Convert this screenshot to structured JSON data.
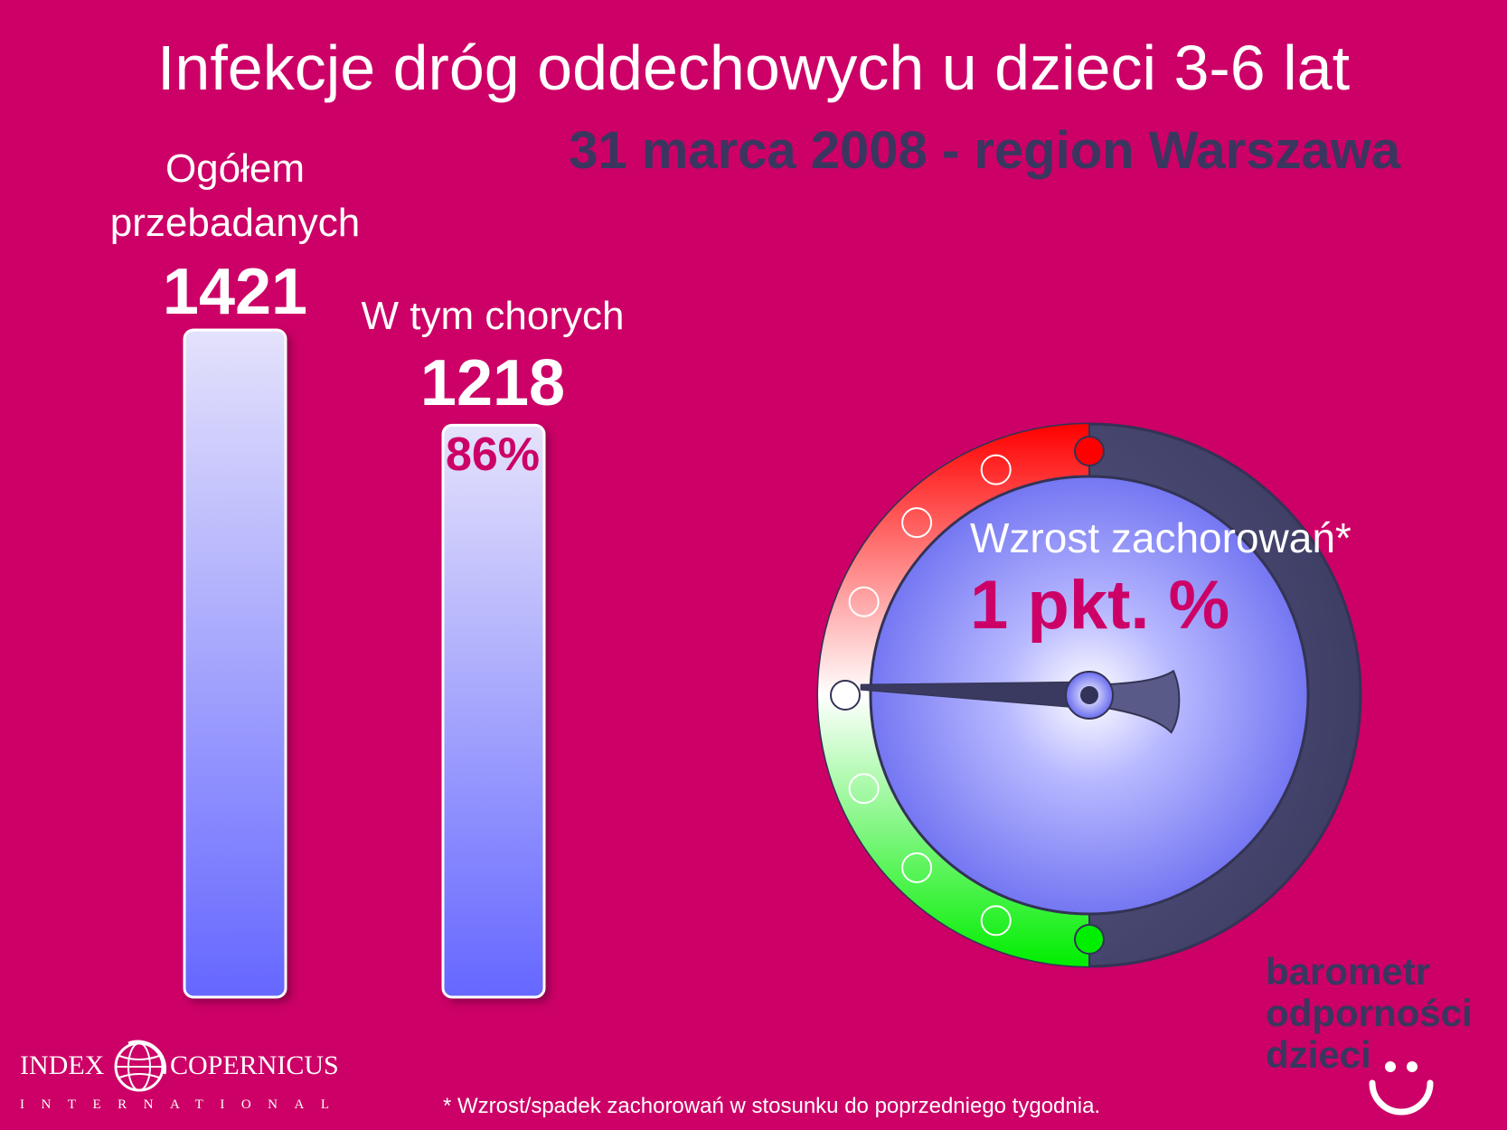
{
  "header": {
    "title": "Infekcje dróg oddechowych u dzieci 3-6 lat",
    "subtitle": "31 marca 2008 - region Warszawa"
  },
  "chart_data": [
    {
      "type": "bar",
      "categories": [
        "Ogółem przebadanych",
        "W tym chorych"
      ],
      "values": [
        1421,
        1218
      ],
      "category_labels": {
        "total_line1": "Ogółem",
        "total_line2": "przebadanych",
        "sick": "W tym chorych"
      },
      "value_labels": [
        "1421",
        "1218"
      ],
      "sick_share_label": "86%",
      "ylim": [
        0,
        1421
      ],
      "bar_colors": {
        "top": "#e4e2fb",
        "bottom": "#6567ff",
        "border": "#ffffff"
      }
    },
    {
      "type": "gauge",
      "label": "Wzrost zachorowań*",
      "value_label": "1 pkt. %",
      "value": 1,
      "positions": 9,
      "pointer_position": 4,
      "colors": {
        "top": "#ff0000",
        "bottom": "#00ee00",
        "mid": "#ffffff",
        "dark": "#3a3a60",
        "dial": "#6a6cf0"
      }
    }
  ],
  "footnote": "* Wzrost/spadek zachorowań w stosunku do poprzedniego tygodnia.",
  "logo": {
    "word1": "INDEX",
    "word2": "COPERNICUS",
    "word3": "INTERNATIONAL"
  },
  "brand": {
    "line1": "barometr",
    "line2": "odporności",
    "line3": "dzieci"
  }
}
